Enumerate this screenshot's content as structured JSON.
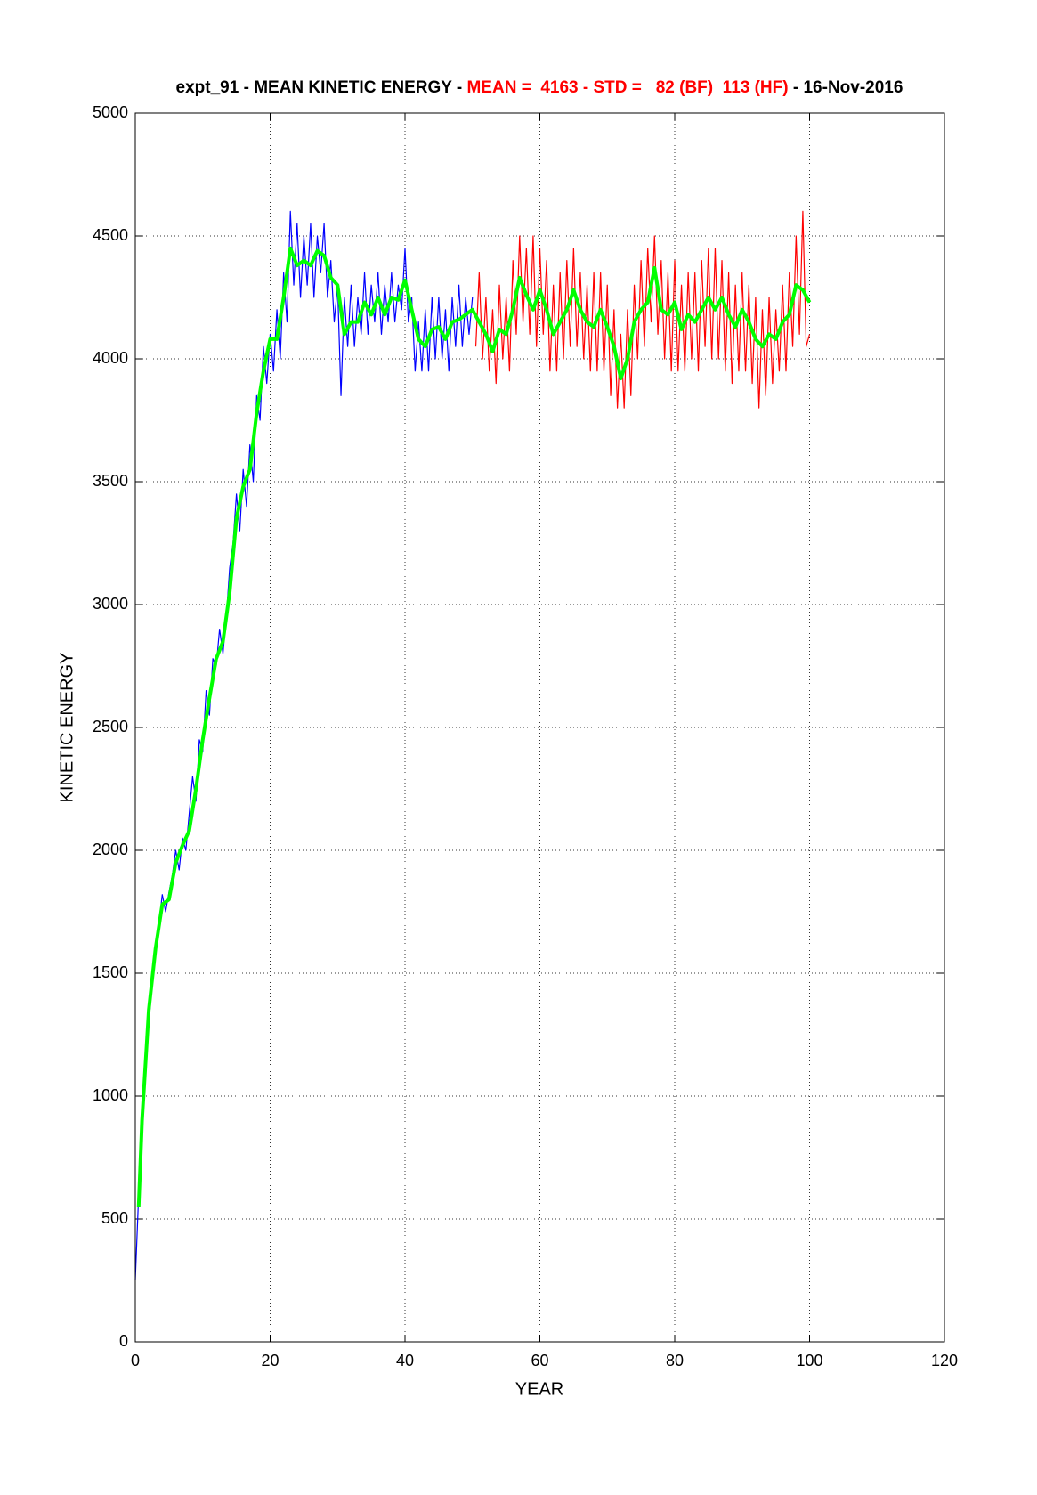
{
  "chart_data": {
    "type": "line",
    "title_parts": [
      {
        "text": "expt_91 - MEAN KINETIC ENERGY - ",
        "color": "#000000"
      },
      {
        "text": "MEAN =  4163 - STD =   82 (BF)  113 (HF)",
        "color": "#ff0000"
      },
      {
        "text": " - 16-Nov-2016",
        "color": "#000000"
      }
    ],
    "x_label": "YEAR",
    "y_label": "KINETIC ENERGY",
    "xlim": [
      0,
      120
    ],
    "xticks": [
      0,
      20,
      40,
      60,
      80,
      100,
      120
    ],
    "ylim": [
      0,
      5000
    ],
    "yticks": [
      0,
      500,
      1000,
      1500,
      2000,
      2500,
      3000,
      3500,
      4000,
      4500,
      5000
    ],
    "grid": true,
    "series": [
      {
        "color": "#0000ff",
        "width": 1.2,
        "x": [
          0,
          0.5,
          1,
          1.5,
          2,
          2.5,
          3,
          3.5,
          4,
          4.5,
          5,
          5.5,
          6,
          6.5,
          7,
          7.5,
          8,
          8.5,
          9,
          9.5,
          10,
          10.5,
          11,
          11.5,
          12,
          12.5,
          13,
          13.5,
          14,
          14.5,
          15,
          15.5,
          16,
          16.5,
          17,
          17.5,
          18,
          18.5,
          19,
          19.5,
          20,
          20.5,
          21,
          21.5,
          22,
          22.5,
          23,
          23.5,
          24,
          24.5,
          25,
          25.5,
          26,
          26.5,
          27,
          27.5,
          28,
          28.5,
          29,
          29.5,
          30,
          30.5,
          31,
          31.5,
          32,
          32.5,
          33,
          33.5,
          34,
          34.5,
          35,
          35.5,
          36,
          36.5,
          37,
          37.5,
          38,
          38.5,
          39,
          39.5,
          40,
          40.5,
          41,
          41.5,
          42,
          42.5,
          43,
          43.5,
          44,
          44.5,
          45,
          45.5,
          46,
          46.5,
          47,
          47.5,
          48,
          48.5,
          49,
          49.5,
          50
        ],
        "values": [
          250,
          600,
          850,
          1150,
          1300,
          1450,
          1600,
          1700,
          1820,
          1750,
          1830,
          1900,
          2000,
          1920,
          2050,
          2000,
          2150,
          2300,
          2200,
          2450,
          2400,
          2650,
          2550,
          2780,
          2750,
          2900,
          2800,
          2950,
          3150,
          3250,
          3450,
          3300,
          3550,
          3400,
          3650,
          3500,
          3850,
          3750,
          4050,
          3900,
          4100,
          3950,
          4200,
          4000,
          4350,
          4150,
          4600,
          4300,
          4550,
          4250,
          4500,
          4300,
          4550,
          4250,
          4500,
          4350,
          4550,
          4250,
          4400,
          4150,
          4300,
          3850,
          4250,
          4050,
          4300,
          4050,
          4250,
          4100,
          4350,
          4100,
          4300,
          4150,
          4350,
          4100,
          4300,
          4150,
          4350,
          4150,
          4300,
          4200,
          4450,
          4150,
          4250,
          3950,
          4150,
          3950,
          4200,
          3950,
          4250,
          4000,
          4250,
          4000,
          4200,
          3950,
          4250,
          4050,
          4300,
          4050,
          4250,
          4100,
          4250
        ]
      },
      {
        "color": "#ff0000",
        "width": 1.2,
        "x": [
          50.5,
          51,
          51.5,
          52,
          52.5,
          53,
          53.5,
          54,
          54.5,
          55,
          55.5,
          56,
          56.5,
          57,
          57.5,
          58,
          58.5,
          59,
          59.5,
          60,
          60.5,
          61,
          61.5,
          62,
          62.5,
          63,
          63.5,
          64,
          64.5,
          65,
          65.5,
          66,
          66.5,
          67,
          67.5,
          68,
          68.5,
          69,
          69.5,
          70,
          70.5,
          71,
          71.5,
          72,
          72.5,
          73,
          73.5,
          74,
          74.5,
          75,
          75.5,
          76,
          76.5,
          77,
          77.5,
          78,
          78.5,
          79,
          79.5,
          80,
          80.5,
          81,
          81.5,
          82,
          82.5,
          83,
          83.5,
          84,
          84.5,
          85,
          85.5,
          86,
          86.5,
          87,
          87.5,
          88,
          88.5,
          89,
          89.5,
          90,
          90.5,
          91,
          91.5,
          92,
          92.5,
          93,
          93.5,
          94,
          94.5,
          95,
          95.5,
          96,
          96.5,
          97,
          97.5,
          98,
          98.5,
          99,
          99.5,
          100
        ],
        "values": [
          4050,
          4350,
          4000,
          4250,
          3950,
          4200,
          3900,
          4300,
          4000,
          4250,
          3950,
          4400,
          4100,
          4500,
          4150,
          4450,
          4100,
          4500,
          4050,
          4450,
          4100,
          4400,
          3950,
          4300,
          3950,
          4350,
          4000,
          4400,
          4050,
          4450,
          4050,
          4350,
          4000,
          4300,
          3950,
          4350,
          3950,
          4350,
          3950,
          4300,
          3850,
          4200,
          3800,
          4100,
          3800,
          4200,
          3850,
          4300,
          4000,
          4400,
          4050,
          4450,
          4150,
          4500,
          4100,
          4400,
          4000,
          4350,
          3950,
          4400,
          3950,
          4300,
          3950,
          4350,
          4000,
          4350,
          3950,
          4400,
          4050,
          4450,
          4000,
          4450,
          4000,
          4400,
          3950,
          4350,
          3900,
          4300,
          3950,
          4350,
          3950,
          4300,
          3900,
          4250,
          3800,
          4200,
          3850,
          4250,
          3900,
          4200,
          3950,
          4300,
          3950,
          4350,
          4050,
          4500,
          4100,
          4600,
          4050,
          4100
        ]
      },
      {
        "color": "#00ff00",
        "width": 4,
        "x": [
          0.5,
          1,
          2,
          3,
          4,
          5,
          6,
          7,
          8,
          9,
          10,
          11,
          12,
          13,
          14,
          15,
          16,
          17,
          18,
          19,
          20,
          21,
          22,
          23,
          24,
          25,
          26,
          27,
          28,
          29,
          30,
          31,
          32,
          33,
          34,
          35,
          36,
          37,
          38,
          39,
          40,
          41,
          42,
          43,
          44,
          45,
          46,
          47,
          48,
          49,
          50,
          51,
          52,
          53,
          54,
          55,
          56,
          57,
          58,
          59,
          60,
          61,
          62,
          63,
          64,
          65,
          66,
          67,
          68,
          69,
          70,
          71,
          72,
          73,
          74,
          75,
          76,
          77,
          78,
          79,
          80,
          81,
          82,
          83,
          84,
          85,
          86,
          87,
          88,
          89,
          90,
          91,
          92,
          93,
          94,
          95,
          96,
          97,
          98,
          99,
          100
        ],
        "values": [
          550,
          900,
          1350,
          1600,
          1780,
          1800,
          1950,
          2020,
          2080,
          2250,
          2450,
          2620,
          2780,
          2850,
          3050,
          3350,
          3480,
          3550,
          3780,
          3950,
          4080,
          4080,
          4250,
          4450,
          4380,
          4400,
          4380,
          4440,
          4420,
          4330,
          4300,
          4100,
          4150,
          4150,
          4230,
          4180,
          4250,
          4180,
          4250,
          4240,
          4320,
          4200,
          4080,
          4050,
          4120,
          4130,
          4080,
          4150,
          4160,
          4180,
          4200,
          4150,
          4100,
          4030,
          4120,
          4100,
          4200,
          4330,
          4260,
          4200,
          4280,
          4200,
          4100,
          4150,
          4200,
          4280,
          4200,
          4150,
          4130,
          4200,
          4130,
          4050,
          3920,
          4000,
          4150,
          4200,
          4230,
          4370,
          4200,
          4180,
          4230,
          4120,
          4180,
          4150,
          4200,
          4250,
          4200,
          4250,
          4180,
          4130,
          4200,
          4150,
          4080,
          4050,
          4100,
          4080,
          4150,
          4180,
          4300,
          4280,
          4230
        ]
      }
    ]
  }
}
